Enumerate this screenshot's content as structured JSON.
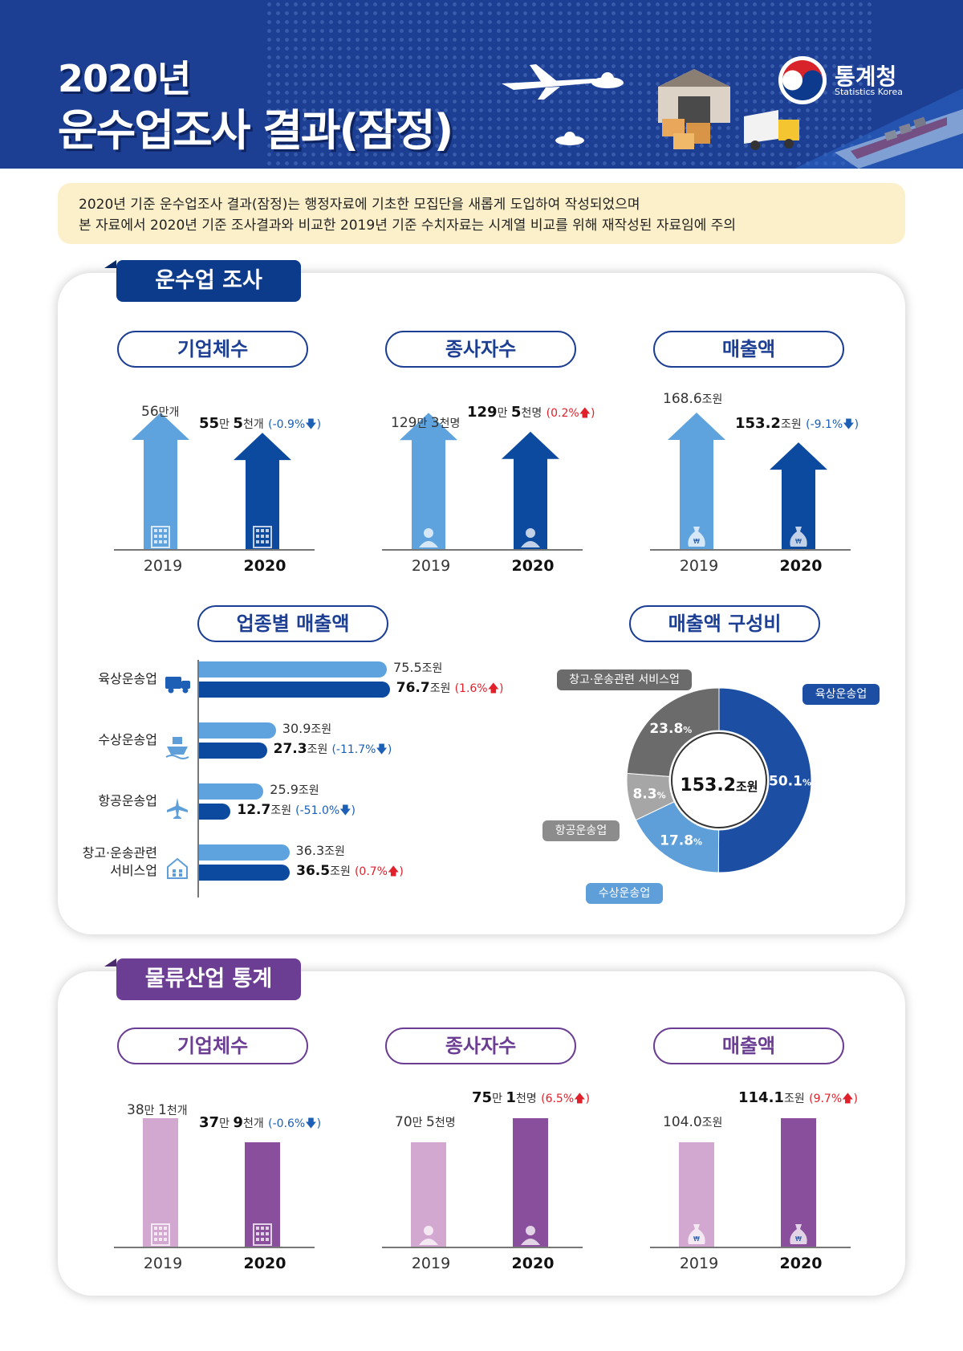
{
  "header": {
    "title_line1": "2020년",
    "title_line2": "운수업조사 결과(잠정)",
    "logo_name": "통계청",
    "logo_sub": "Statistics Korea"
  },
  "notice": {
    "line1": "2020년 기준 운수업조사 결과(잠정)는 행정자료에 기초한 모집단을 새롭게 도입하여 작성되었으며",
    "line2": "본 자료에서 2020년 기준 조사결과와 비교한 2019년 기준 수치자료는 시계열 비교를 위해 재작성된 자료임에 주의"
  },
  "survey": {
    "tab": "운수업 조사",
    "pills": [
      "기업체수",
      "종사자수",
      "매출액",
      "업종별 매출액",
      "매출액 구성비"
    ],
    "years": [
      "2019",
      "2020"
    ]
  },
  "logistics": {
    "tab": "물류산업 통계",
    "pills": [
      "기업체수",
      "종사자수",
      "매출액"
    ],
    "years": [
      "2019",
      "2020"
    ]
  },
  "labels": {
    "s_firm_2019_num": "56",
    "s_firm_2019_unit": "만개",
    "s_firm_2020_num1": "55",
    "s_firm_2020_unit1": "만 ",
    "s_firm_2020_num2": "5",
    "s_firm_2020_unit2": "천개",
    "s_firm_2020_chg": "(-0.9%🡇)",
    "s_emp_2019_num1": "129",
    "s_emp_2019_unit1": "만 ",
    "s_emp_2019_num2": "3",
    "s_emp_2019_unit2": "천명",
    "s_emp_2020_num1": "129",
    "s_emp_2020_unit1": "만 ",
    "s_emp_2020_num2": "5",
    "s_emp_2020_unit2": "천명",
    "s_emp_2020_chg": "(0.2%🡅)",
    "s_sales_2019_num": "168.6",
    "s_sales_2019_unit": "조원",
    "s_sales_2020_num": "153.2",
    "s_sales_2020_unit": "조원",
    "s_sales_2020_chg": "(-9.1%🡇)",
    "l_firm_2019_num1": "38",
    "l_firm_2019_unit1": "만 ",
    "l_firm_2019_num2": "1",
    "l_firm_2019_unit2": "천개",
    "l_firm_2020_num1": "37",
    "l_firm_2020_unit1": "만 ",
    "l_firm_2020_num2": "9",
    "l_firm_2020_unit2": "천개",
    "l_firm_2020_chg": "(-0.6%🡇)",
    "l_emp_2019_num1": "70",
    "l_emp_2019_unit1": "만 ",
    "l_emp_2019_num2": "5",
    "l_emp_2019_unit2": "천명",
    "l_emp_2020_num1": "75",
    "l_emp_2020_unit1": "만 ",
    "l_emp_2020_num2": "1",
    "l_emp_2020_unit2": "천명",
    "l_emp_2020_chg": "(6.5%🡅)",
    "l_sales_2019_num": "104.0",
    "l_sales_2019_unit": "조원",
    "l_sales_2020_num": "114.1",
    "l_sales_2020_unit": "조원",
    "l_sales_2020_chg": "(9.7%🡅)"
  },
  "chart_data": [
    {
      "type": "bar",
      "title": "기업체수",
      "categories": [
        "2019",
        "2020"
      ],
      "values": [
        560000,
        555000
      ],
      "unit": "개",
      "change": "-0.9%"
    },
    {
      "type": "bar",
      "title": "종사자수",
      "categories": [
        "2019",
        "2020"
      ],
      "values": [
        1293000,
        1295000
      ],
      "unit": "명",
      "change": "0.2%"
    },
    {
      "type": "bar",
      "title": "매출액",
      "categories": [
        "2019",
        "2020"
      ],
      "values": [
        168.6,
        153.2
      ],
      "unit": "조원",
      "change": "-9.1%"
    },
    {
      "type": "bar",
      "orientation": "horizontal",
      "title": "업종별 매출액",
      "categories": [
        "육상운송업",
        "수상운송업",
        "항공운송업",
        "창고·운송관련 서비스업"
      ],
      "category_lines": [
        [
          "육상운송업"
        ],
        [
          "수상운송업"
        ],
        [
          "항공운송업"
        ],
        [
          "창고·운송관련",
          "서비스업"
        ]
      ],
      "unit": "조원",
      "series": [
        {
          "name": "2019",
          "values": [
            75.5,
            30.9,
            25.9,
            36.3
          ]
        },
        {
          "name": "2020",
          "values": [
            76.7,
            27.3,
            12.7,
            36.5
          ]
        }
      ],
      "changes": [
        "(1.6%🡅)",
        "(-11.7%🡇)",
        "(-51.0%🡇)",
        "(0.7%🡅)"
      ],
      "change_colors": [
        "red",
        "blue",
        "blue",
        "red"
      ]
    },
    {
      "type": "pie",
      "title": "매출액 구성비",
      "center_value": "153.2",
      "center_unit": "조원",
      "slices": [
        {
          "label": "육상운송업",
          "value": 50.1,
          "color": "#1c4ea3"
        },
        {
          "label": "수상운송업",
          "value": 17.8,
          "color": "#5e9ed9"
        },
        {
          "label": "항공운송업",
          "value": 8.3,
          "color": "#a6a6a6"
        },
        {
          "label": "창고·운송관련 서비스업",
          "value": 23.8,
          "color": "#6b6b6b"
        }
      ]
    },
    {
      "type": "bar",
      "title": "기업체수",
      "categories": [
        "2019",
        "2020"
      ],
      "values": [
        381000,
        379000
      ],
      "unit": "개",
      "change": "-0.6%"
    },
    {
      "type": "bar",
      "title": "종사자수",
      "categories": [
        "2019",
        "2020"
      ],
      "values": [
        705000,
        751000
      ],
      "unit": "명",
      "change": "6.5%"
    },
    {
      "type": "bar",
      "title": "매출액",
      "categories": [
        "2019",
        "2020"
      ],
      "values": [
        104.0,
        114.1
      ],
      "unit": "조원",
      "change": "9.7%"
    }
  ],
  "colors": {
    "navy": "#1c3f94",
    "light_blue": "#5ea3dd",
    "dark_blue": "#0c4aa0",
    "purple_light": "#d2a8d0",
    "purple_dark": "#8a4f9c",
    "purple_tab": "#6b3e94",
    "notice_bg": "#fbf0c9"
  },
  "icons": [
    "airplane-icon",
    "warehouse-icon",
    "truck-icon",
    "ship-icon",
    "building-icon",
    "person-icon",
    "money-bag-icon",
    "government-logo-icon"
  ]
}
